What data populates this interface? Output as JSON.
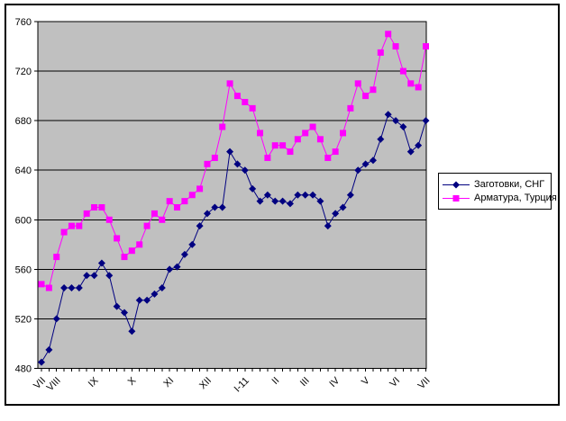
{
  "chart_data": {
    "type": "line",
    "title": "",
    "xlabel": "",
    "ylabel": "",
    "ylim": [
      480,
      760
    ],
    "yticks": [
      480,
      520,
      560,
      600,
      640,
      680,
      720,
      760
    ],
    "x_labels": [
      "VII",
      "VIII",
      "IX",
      "X",
      "XI",
      "XII",
      "I-11",
      "II",
      "III",
      "IV",
      "V",
      "VI",
      "VII"
    ],
    "x_label_positions": [
      0,
      2,
      7,
      12,
      17,
      22,
      27,
      31,
      35,
      39,
      43,
      47,
      51
    ],
    "grid": true,
    "plot_bg": "#c0c0c0",
    "grid_color": "#000000",
    "axis_text_color": "#000000",
    "legend_position": "right",
    "series": [
      {
        "name": "Заготовки, СНГ",
        "color": "#000080",
        "marker": "diamond",
        "values": [
          485,
          495,
          520,
          545,
          545,
          545,
          555,
          555,
          565,
          555,
          530,
          525,
          510,
          535,
          535,
          540,
          545,
          560,
          562,
          572,
          580,
          595,
          605,
          610,
          610,
          655,
          645,
          640,
          625,
          615,
          620,
          615,
          615,
          613,
          620,
          620,
          620,
          615,
          595,
          605,
          610,
          620,
          640,
          645,
          648,
          665,
          685,
          680,
          675,
          655,
          660,
          680
        ]
      },
      {
        "name": "Арматура, Турция",
        "color": "#ff00ff",
        "marker": "square",
        "values": [
          548,
          545,
          570,
          590,
          595,
          595,
          605,
          610,
          610,
          600,
          585,
          570,
          575,
          580,
          595,
          605,
          600,
          615,
          610,
          615,
          620,
          625,
          645,
          650,
          675,
          710,
          700,
          695,
          690,
          670,
          650,
          660,
          660,
          655,
          665,
          670,
          675,
          665,
          650,
          655,
          670,
          690,
          710,
          700,
          705,
          735,
          750,
          740,
          720,
          710,
          707,
          740
        ]
      }
    ]
  },
  "legend": {
    "items": [
      {
        "label": "Заготовки, СНГ"
      },
      {
        "label": "Арматура, Турция"
      }
    ]
  }
}
